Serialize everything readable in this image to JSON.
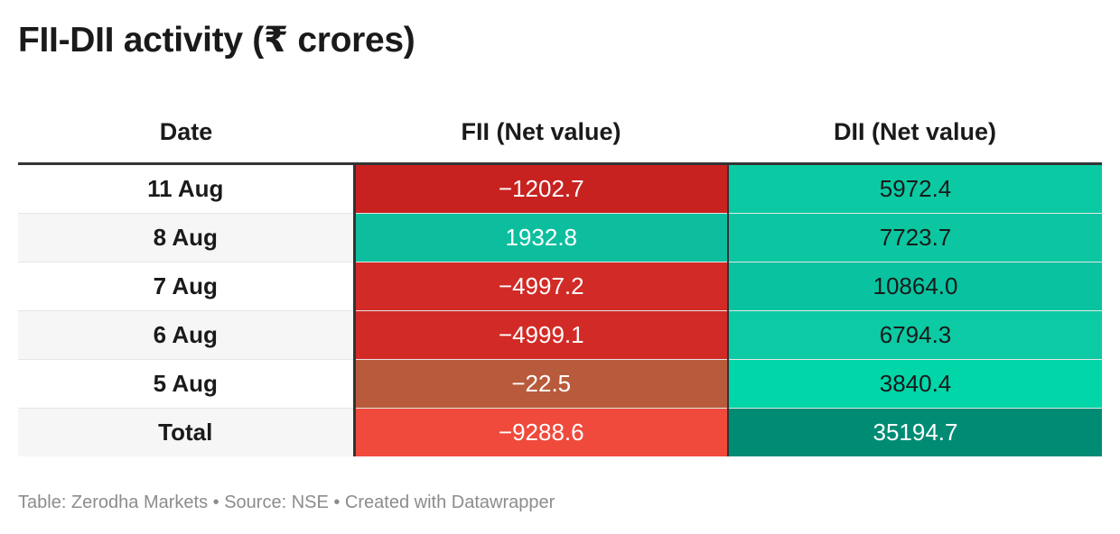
{
  "title": "FII-DII activity (₹ crores)",
  "footer": "Table: Zerodha Markets • Source: NSE • Created with Datawrapper",
  "chart_data": {
    "type": "table",
    "title": "FII-DII activity (₹ crores)",
    "columns": [
      "Date",
      "FII (Net value)",
      "DII (Net value)"
    ],
    "rows": [
      {
        "date": "11 Aug",
        "fii": "−1202.7",
        "dii": "5972.4",
        "fii_bg": "#c82220",
        "fii_fg": "#ffffff",
        "dii_bg": "#0bcaa3",
        "dii_fg": "#1a1a1a"
      },
      {
        "date": "8 Aug",
        "fii": "1932.8",
        "dii": "7723.7",
        "fii_bg": "#0dbe9e",
        "fii_fg": "#ffffff",
        "dii_bg": "#0bc6a1",
        "dii_fg": "#1a1a1a"
      },
      {
        "date": "7 Aug",
        "fii": "−4997.2",
        "dii": "10864.0",
        "fii_bg": "#d22a26",
        "fii_fg": "#ffffff",
        "dii_bg": "#09c3a0",
        "dii_fg": "#1a1a1a"
      },
      {
        "date": "6 Aug",
        "fii": "−4999.1",
        "dii": "6794.3",
        "fii_bg": "#d22a26",
        "fii_fg": "#ffffff",
        "dii_bg": "#0ccaa4",
        "dii_fg": "#1a1a1a"
      },
      {
        "date": "5 Aug",
        "fii": "−22.5",
        "dii": "3840.4",
        "fii_bg": "#b85b3c",
        "fii_fg": "#ffffff",
        "dii_bg": "#00d6a8",
        "dii_fg": "#1a1a1a"
      },
      {
        "date": "Total",
        "fii": "−9288.6",
        "dii": "35194.7",
        "fii_bg": "#ef4a3c",
        "fii_fg": "#ffffff",
        "dii_bg": "#008c74",
        "dii_fg": "#ffffff"
      }
    ]
  }
}
